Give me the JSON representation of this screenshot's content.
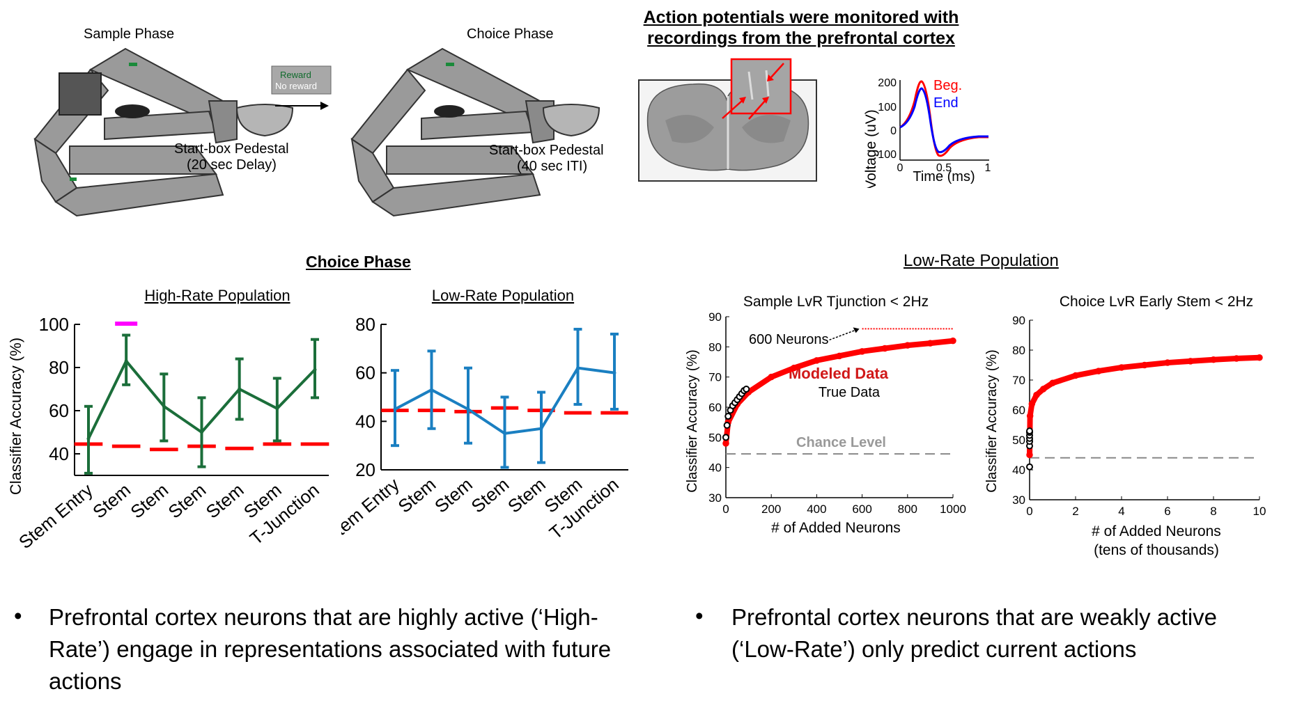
{
  "maze": {
    "sample_phase_label": "Sample Phase",
    "choice_phase_label": "Choice Phase",
    "reward_label": "Reward",
    "no_reward_label": "No reward",
    "pedestal1_line1": "Start-box Pedestal",
    "pedestal1_line2": "(20 sec Delay)",
    "pedestal2_line1": "Start-box Pedestal",
    "pedestal2_line2": "(40 sec ITI)"
  },
  "recording": {
    "title_line1": "Action potentials were monitored with",
    "title_line2": "recordings from the prefrontal cortex",
    "waveform": {
      "legend_beg": "Beg.",
      "legend_end": "End",
      "ylabel": "Voltage (uV)",
      "xlabel": "Time (ms)",
      "yticks": [
        "200",
        "100",
        "0",
        "-100"
      ],
      "xticks": [
        "0",
        "0.5",
        "1"
      ],
      "colors": {
        "beg": "#ff0000",
        "end": "#0000ff"
      }
    }
  },
  "choice_phase_title": "Choice Phase",
  "low_rate_section_title": "Low-Rate Population",
  "chart_data": [
    {
      "type": "line",
      "title": "High-Rate Population",
      "ylabel": "Classifier Accuracy (%)",
      "categories": [
        "Stem Entry",
        "Stem",
        "Stem",
        "Stem",
        "Stem",
        "Stem",
        "T-Junction"
      ],
      "values": [
        47,
        83,
        62,
        50,
        70,
        61,
        79
      ],
      "err_low": [
        31,
        72,
        46,
        34,
        56,
        46,
        66
      ],
      "err_high": [
        62,
        95,
        77,
        66,
        84,
        75,
        93
      ],
      "chance": [
        44.5,
        43.5,
        42,
        43.5,
        42.5,
        44.5,
        44.5
      ],
      "significant_index": 1,
      "yticks": [
        "40",
        "60",
        "80",
        "100"
      ],
      "ylim": [
        30,
        100
      ],
      "color": "#1b6e3a",
      "chance_color": "#ff0000",
      "sig_color": "#ff00ff"
    },
    {
      "type": "line",
      "title": "Low-Rate Population",
      "categories": [
        "Stem Entry",
        "Stem",
        "Stem",
        "Stem",
        "Stem",
        "Stem",
        "T-Junction"
      ],
      "values": [
        45,
        53,
        45,
        35,
        37,
        62,
        60
      ],
      "err_low": [
        30,
        37,
        31,
        21,
        23,
        47,
        45
      ],
      "err_high": [
        61,
        69,
        62,
        50,
        52,
        78,
        76
      ],
      "chance": [
        44.5,
        44.5,
        44,
        45.5,
        44.5,
        43.5,
        43.5
      ],
      "yticks": [
        "20",
        "40",
        "60",
        "80"
      ],
      "ylim": [
        20,
        80
      ],
      "color": "#1a7fc1",
      "chance_color": "#ff0000"
    },
    {
      "type": "scatter",
      "title": "Sample LvR Tjunction < 2Hz",
      "xlabel": "# of Added Neurons",
      "ylabel": "Classifier Accuracy (%)",
      "xlim": [
        0,
        1000
      ],
      "ylim": [
        30,
        90
      ],
      "xticks": [
        "0",
        "200",
        "400",
        "600",
        "800",
        "1000"
      ],
      "yticks": [
        "30",
        "40",
        "50",
        "60",
        "70",
        "80",
        "90"
      ],
      "modeled_label": "Modeled Data",
      "true_label": "True Data",
      "chance_label": "Chance Level",
      "annotation": "600 Neurons",
      "chance_level": 44.5,
      "modeled_curve": {
        "x": [
          0,
          10,
          50,
          100,
          200,
          300,
          400,
          500,
          600,
          700,
          800,
          900,
          1000
        ],
        "y": [
          48,
          55,
          61,
          65,
          70,
          73,
          75.5,
          77,
          78.5,
          79.5,
          80.5,
          81.2,
          82
        ]
      },
      "true_data": {
        "x": [
          0,
          5,
          10,
          20,
          30,
          40,
          50,
          60,
          70,
          80,
          90
        ],
        "y": [
          50,
          54,
          57,
          59,
          60.5,
          61.5,
          62.5,
          63.5,
          64.5,
          65.5,
          66
        ]
      },
      "annotation_line": {
        "x": [
          600,
          1000
        ],
        "y": [
          86,
          86
        ]
      },
      "colors": {
        "modeled": "#ff0000",
        "true": "#000000",
        "chance": "#888888"
      }
    },
    {
      "type": "scatter",
      "title": "Choice LvR Early Stem < 2Hz",
      "xlabel": "# of Added Neurons",
      "xlabel2": "(tens of thousands)",
      "ylabel": "Classifier Accuracy (%)",
      "xlim": [
        0,
        10
      ],
      "ylim": [
        30,
        90
      ],
      "xticks": [
        "0",
        "2",
        "4",
        "6",
        "8",
        "10"
      ],
      "yticks": [
        "30",
        "40",
        "50",
        "60",
        "70",
        "80",
        "90"
      ],
      "chance_level": 44,
      "modeled_curve": {
        "x": [
          0,
          0.02,
          0.1,
          0.3,
          0.6,
          1,
          2,
          3,
          4,
          5,
          6,
          7,
          8,
          9,
          10
        ],
        "y": [
          45,
          58,
          62,
          65,
          67,
          69,
          71.5,
          73,
          74.2,
          75,
          75.8,
          76.3,
          76.8,
          77.2,
          77.5
        ]
      },
      "true_data": {
        "x": [
          0,
          0,
          0,
          0,
          0,
          0,
          0
        ],
        "y": [
          41,
          48,
          49.5,
          50.5,
          51.5,
          52.5,
          53
        ]
      },
      "colors": {
        "modeled": "#ff0000",
        "true": "#000000",
        "chance": "#888888"
      }
    }
  ],
  "bullets": {
    "left_line1": "Prefrontal cortex neurons that are highly active (‘High-",
    "left_line2": "Rate’) engage in representations associated with future",
    "left_line3": "actions",
    "right_line1": "Prefrontal cortex neurons that are weakly active",
    "right_line2": "(‘Low-Rate’) only predict current actions"
  }
}
